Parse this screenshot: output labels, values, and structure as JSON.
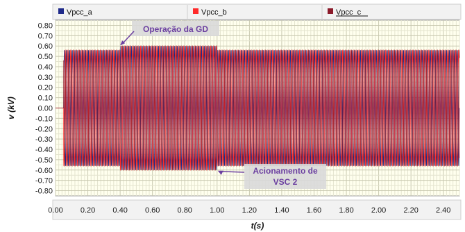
{
  "chart_data": {
    "type": "line",
    "xlabel": "t(s)",
    "ylabel": "v (kV)",
    "xlim": [
      0.0,
      2.5
    ],
    "ylim": [
      -0.85,
      0.85
    ],
    "x_ticks": [
      "0.00",
      "0.20",
      "0.40",
      "0.60",
      "0.80",
      "1.00",
      "1.20",
      "1.40",
      "1.60",
      "1.80",
      "2.00",
      "2.20",
      "2.40"
    ],
    "y_ticks": [
      "0.80",
      "0.70",
      "0.60",
      "0.50",
      "0.40",
      "0.30",
      "0.20",
      "0.10",
      "0.00",
      "-0.10",
      "-0.20",
      "-0.30",
      "-0.40",
      "-0.50",
      "-0.60",
      "-0.70",
      "-0.80"
    ],
    "grid": true,
    "legend_position": "top",
    "frequency_hz": 60,
    "series": [
      {
        "name": "Vpcc_a",
        "color": "#1f2a8a",
        "phase_deg": 0,
        "amplitude_segments": [
          {
            "from": 0.0,
            "to": 0.05,
            "amplitude": 0.0
          },
          {
            "from": 0.05,
            "to": 0.4,
            "amplitude": 0.56
          },
          {
            "from": 0.4,
            "to": 1.0,
            "amplitude": 0.6
          },
          {
            "from": 1.0,
            "to": 2.5,
            "amplitude": 0.56
          }
        ]
      },
      {
        "name": "Vpcc_b",
        "color": "#ff2a2a",
        "phase_deg": -120,
        "amplitude_segments": [
          {
            "from": 0.0,
            "to": 0.05,
            "amplitude": 0.0
          },
          {
            "from": 0.05,
            "to": 0.4,
            "amplitude": 0.56
          },
          {
            "from": 0.4,
            "to": 1.0,
            "amplitude": 0.6
          },
          {
            "from": 1.0,
            "to": 2.5,
            "amplitude": 0.56
          }
        ]
      },
      {
        "name": "Vpcc_c",
        "color": "#8b1a2a",
        "phase_deg": 120,
        "amplitude_segments": [
          {
            "from": 0.0,
            "to": 0.05,
            "amplitude": 0.0
          },
          {
            "from": 0.05,
            "to": 0.4,
            "amplitude": 0.56
          },
          {
            "from": 0.4,
            "to": 1.0,
            "amplitude": 0.6
          },
          {
            "from": 1.0,
            "to": 2.5,
            "amplitude": 0.56
          }
        ]
      }
    ],
    "annotations": [
      {
        "text_lines": [
          "Operação da GD"
        ],
        "point": [
          0.4,
          0.6
        ],
        "color": "#6b3fa0"
      },
      {
        "text_lines": [
          "Acionamento de",
          "VSC 2"
        ],
        "point": [
          1.0,
          -0.6
        ],
        "color": "#6b3fa0"
      }
    ]
  }
}
